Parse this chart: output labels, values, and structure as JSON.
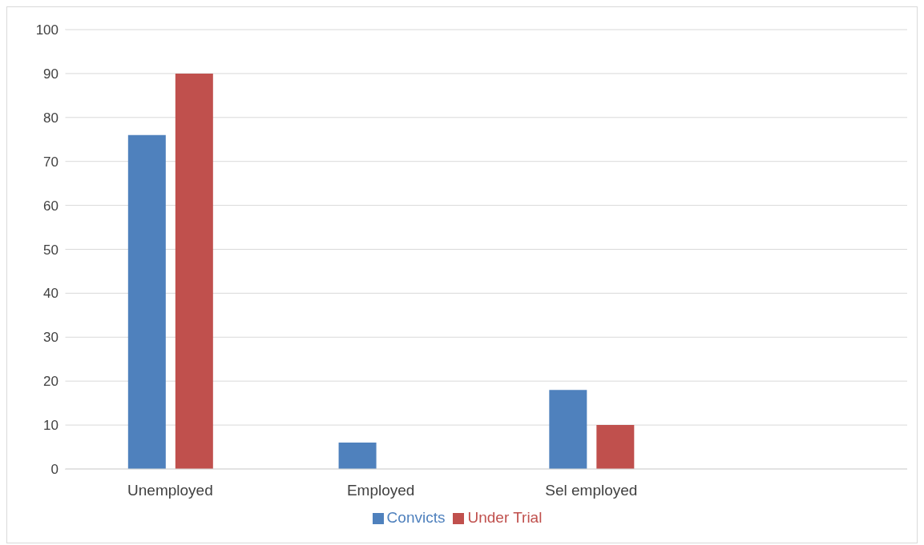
{
  "chart_data": {
    "type": "bar",
    "categories": [
      "Unemployed",
      "Employed",
      "Sel employed",
      null
    ],
    "series": [
      {
        "name": "Convicts",
        "color": "#4f81bd",
        "values": [
          76,
          6,
          18,
          null
        ]
      },
      {
        "name": "Under Trial",
        "color": "#c0504d",
        "values": [
          90,
          0,
          10,
          null
        ]
      }
    ],
    "ylim": [
      0,
      100
    ],
    "yticks": [
      0,
      10,
      20,
      30,
      40,
      50,
      60,
      70,
      80,
      90,
      100
    ],
    "grid": "y",
    "legend": "bottom"
  }
}
